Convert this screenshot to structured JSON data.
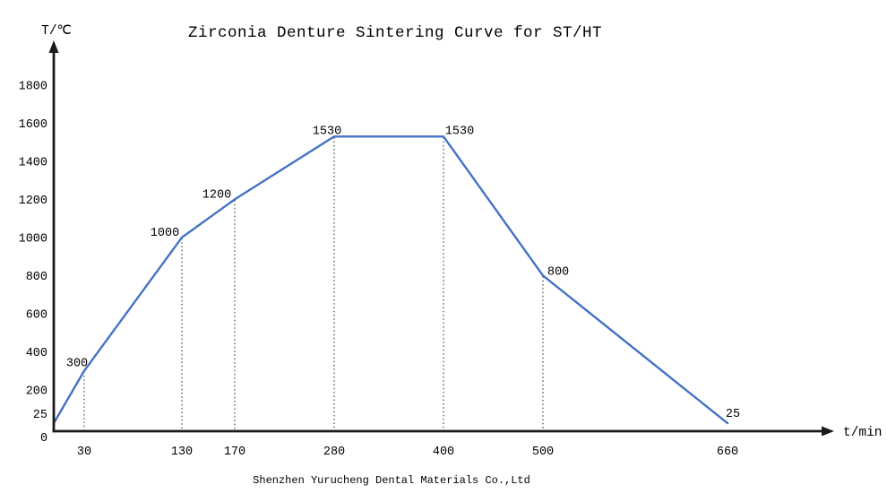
{
  "page": {
    "background": "#ffffff"
  },
  "chart_data": {
    "type": "line",
    "title": "Zirconia Denture Sintering Curve for ST/HT",
    "xlabel": "t/min",
    "ylabel": "T/℃",
    "origin_label": "0",
    "x": [
      0,
      30,
      130,
      170,
      280,
      400,
      500,
      660
    ],
    "y": [
      25,
      300,
      1000,
      1200,
      1530,
      1530,
      800,
      25
    ],
    "point_labels": [
      "",
      "300",
      "1000",
      "1200",
      "1530",
      "1530",
      "800",
      "25"
    ],
    "x_tick_values": [
      30,
      130,
      170,
      280,
      400,
      500,
      660
    ],
    "x_tick_labels": [
      "30",
      "130",
      "170",
      "280",
      "400",
      "500",
      "660"
    ],
    "y_tick_values": [
      1800,
      1600,
      1400,
      1200,
      1000,
      800,
      600,
      400,
      200,
      25
    ],
    "y_tick_labels": [
      "1800",
      "1600",
      "1400",
      "1200",
      "1000",
      "800",
      "600",
      "400",
      "200",
      "25"
    ],
    "droplines_at_x": [
      30,
      130,
      170,
      280,
      400,
      500
    ],
    "xlim": [
      0,
      770
    ],
    "ylim": [
      0,
      1900
    ],
    "grid": false,
    "legend": false,
    "line_color": "#4472C4",
    "axis_color": "#1a1a1a",
    "dropline_color": "#222222"
  },
  "footer": {
    "company": "Shenzhen Yurucheng Dental Materials Co.,Ltd"
  }
}
